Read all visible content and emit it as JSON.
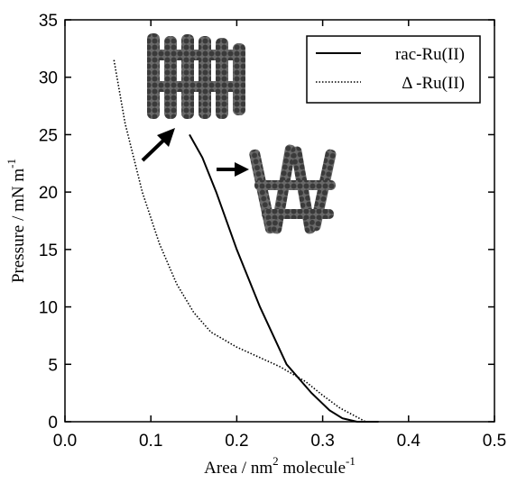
{
  "chart_data": {
    "type": "line",
    "xlabel": [
      "Area / nm",
      "2",
      " molecule",
      "-1"
    ],
    "ylabel": [
      "Pressure / mN m",
      "-1"
    ],
    "xlim": [
      0,
      0.5
    ],
    "xticks": [
      {
        "value": 0,
        "label": "0.0"
      },
      0.1,
      0.2,
      0.3,
      0.4,
      0.5
    ],
    "ylim": [
      0,
      35
    ],
    "yticks": [
      0,
      5,
      10,
      15,
      20,
      25,
      30,
      35
    ],
    "legend": "top-right",
    "series": [
      {
        "name": "rac-Ru(II)",
        "color": "#000000",
        "style": "solid",
        "x": [
          0.145,
          0.16,
          0.176,
          0.2,
          0.227,
          0.258,
          0.287,
          0.308,
          0.323,
          0.34,
          0.365
        ],
        "values": [
          25,
          23,
          20,
          15,
          10,
          5,
          2.5,
          1,
          0.3,
          0,
          0
        ]
      },
      {
        "name": "Δ -Ru(II)",
        "color": "#000000",
        "style": "dotted",
        "x": [
          0.057,
          0.07,
          0.09,
          0.11,
          0.13,
          0.15,
          0.17,
          0.2,
          0.25,
          0.28,
          0.3,
          0.32,
          0.34,
          0.35
        ],
        "values": [
          31.5,
          26,
          20,
          15.5,
          12,
          9.5,
          7.8,
          6.5,
          4.8,
          3.5,
          2.3,
          1.2,
          0.4,
          0
        ]
      }
    ]
  }
}
